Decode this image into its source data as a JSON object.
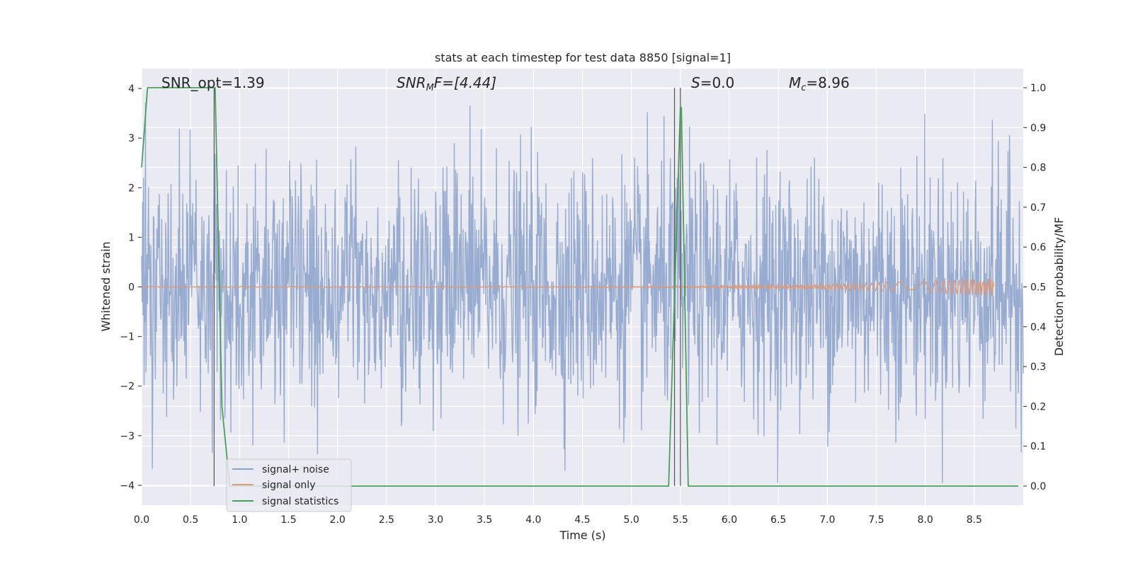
{
  "chart_data": {
    "type": "line",
    "title": "stats at each timestep for test data 8850 [signal=1]",
    "xlabel": "Time (s)",
    "ylabel": "Whitened strain",
    "ylabel_right": "Detection probability/MF",
    "xlim": [
      0.0,
      9.0
    ],
    "ylim": [
      -4.4,
      4.4
    ],
    "ylim_right": [
      -0.048,
      1.048
    ],
    "xticks": [
      "0.0",
      "0.5",
      "1.0",
      "1.5",
      "2.0",
      "2.5",
      "3.0",
      "3.5",
      "4.0",
      "4.5",
      "5.0",
      "5.5",
      "6.0",
      "6.5",
      "7.0",
      "7.5",
      "8.0",
      "8.5"
    ],
    "yticks": [
      "4",
      "3",
      "2",
      "1",
      "0",
      "−1",
      "−2",
      "−3",
      "−4"
    ],
    "yticks_right": [
      "1.0",
      "0.9",
      "0.8",
      "0.7",
      "0.6",
      "0.5",
      "0.4",
      "0.3",
      "0.2",
      "0.1",
      "0.0"
    ],
    "grid": true,
    "legend_position": "lower-left",
    "annotations": {
      "snr_opt": "SNR_opt=1.39",
      "snr_mf_base": "SNR",
      "snr_mf_sub": "M",
      "snr_mf_rest": "F=[4.44]",
      "s_base": "S",
      "s_rest": "=0.0",
      "mc_base": "M",
      "mc_sub": "c",
      "mc_rest": "=8.96"
    },
    "series": [
      {
        "name": "signal+ noise",
        "color": "#8fa4cc",
        "description_type": "noise",
        "sigma": 0.85,
        "x_range": [
          0.0,
          9.0
        ]
      },
      {
        "name": "signal only",
        "color": "#d99a7e",
        "description_type": "chirp",
        "x_range": [
          0.0,
          8.7
        ],
        "peak_amplitude": 0.18,
        "peak_time": 8.7
      },
      {
        "name": "signal statistics",
        "color": "#4a9e5c",
        "axis": "right",
        "x": [
          0.0,
          0.06,
          0.1,
          0.5,
          0.73,
          0.75,
          0.82,
          0.9,
          1.0,
          5.38,
          5.5,
          5.51,
          5.58,
          6.0,
          8.95
        ],
        "y": [
          0.8,
          1.0,
          1.0,
          1.0,
          1.0,
          1.0,
          0.2,
          0.0,
          0.0,
          0.0,
          0.95,
          0.95,
          0.0,
          0.0,
          0.0
        ]
      }
    ],
    "vlines": [
      0.74,
      5.44,
      5.5
    ]
  },
  "colors": {
    "axes_bg": "#eaeaf2",
    "grid": "#ffffff",
    "vline": "#555555"
  }
}
